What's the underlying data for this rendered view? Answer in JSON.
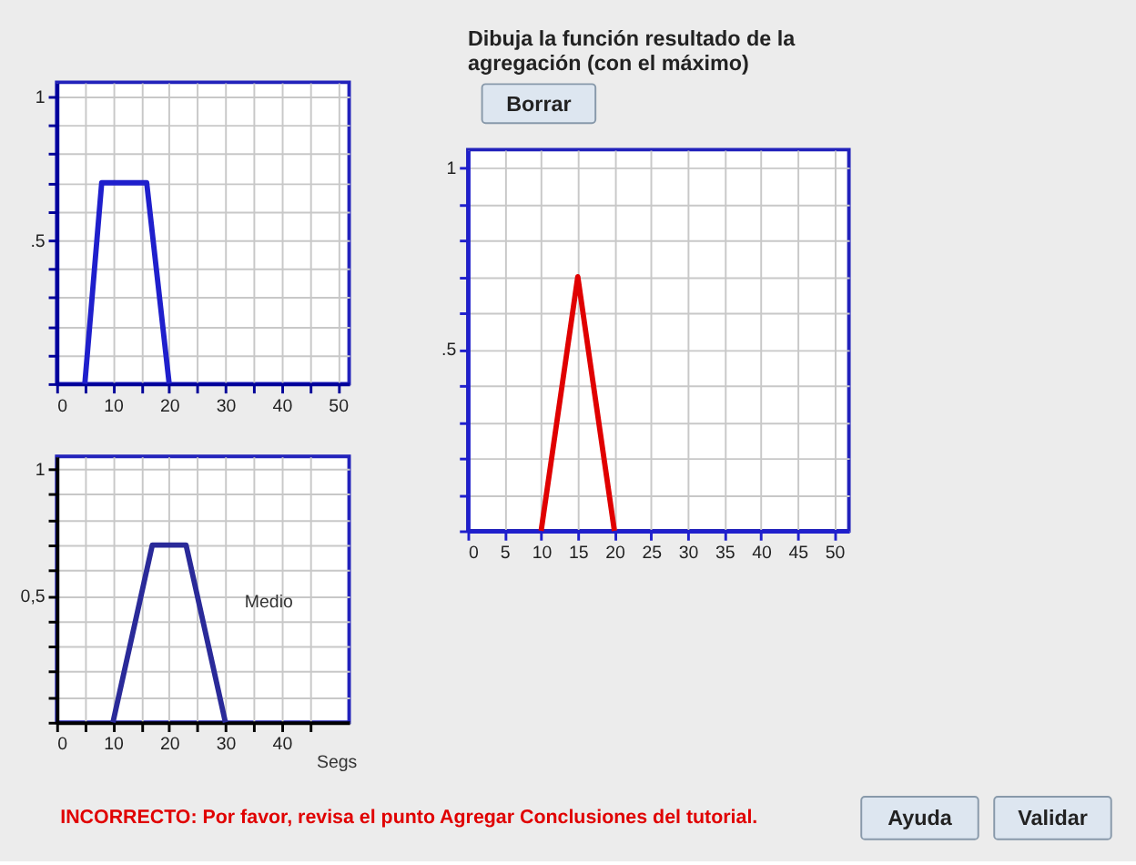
{
  "chart_data": [
    {
      "type": "line",
      "xlim": [
        0,
        52
      ],
      "ylim": [
        0,
        1.05
      ],
      "xticks": [
        0,
        {
          "value": 5,
          "label": null
        },
        10,
        {
          "value": 15,
          "label": null
        },
        20,
        {
          "value": 25,
          "label": null
        },
        30,
        {
          "value": 35,
          "label": null
        },
        40,
        {
          "value": 45,
          "label": null
        },
        50
      ],
      "yticks": [
        {
          "value": 0,
          "label": null
        },
        {
          "value": 0.1,
          "label": null
        },
        {
          "value": 0.2,
          "label": null
        },
        {
          "value": 0.3,
          "label": null
        },
        {
          "value": 0.4,
          "label": null
        },
        {
          "value": 0.5,
          "label": ".5"
        },
        {
          "value": 0.6,
          "label": null
        },
        {
          "value": 0.7,
          "label": null
        },
        {
          "value": 0.8,
          "label": null
        },
        {
          "value": 0.9,
          "label": null
        },
        1
      ],
      "grid": true,
      "legend": false,
      "marker": "none",
      "line_style": "solid",
      "series": [
        {
          "color": "#1f1fcc",
          "x": [
            5,
            8,
            16,
            20
          ],
          "values": [
            0,
            0.7,
            0.7,
            0
          ]
        }
      ]
    },
    {
      "type": "line",
      "xlim": [
        0,
        52
      ],
      "ylim": [
        0,
        1.05
      ],
      "xlabel": "Segs",
      "xticks": [
        0,
        {
          "value": 5,
          "label": null
        },
        10,
        {
          "value": 15,
          "label": null
        },
        20,
        {
          "value": 25,
          "label": null
        },
        30,
        {
          "value": 35,
          "label": null
        },
        40,
        {
          "value": 45,
          "label": null
        }
      ],
      "yticks": [
        {
          "value": 0,
          "label": null
        },
        {
          "value": 0.1,
          "label": null
        },
        {
          "value": 0.2,
          "label": null
        },
        {
          "value": 0.3,
          "label": null
        },
        {
          "value": 0.4,
          "label": null
        },
        {
          "value": 0.5,
          "label": "0,5"
        },
        {
          "value": 0.6,
          "label": null
        },
        {
          "value": 0.7,
          "label": null
        },
        {
          "value": 0.8,
          "label": null
        },
        {
          "value": 0.9,
          "label": null
        },
        1
      ],
      "grid": true,
      "legend": false,
      "marker": "none",
      "line_style": "solid",
      "series": [
        {
          "name": "Medio",
          "color": "#2a2a99",
          "x": [
            10,
            17,
            23,
            30
          ],
          "values": [
            0,
            0.7,
            0.7,
            0
          ]
        }
      ]
    },
    {
      "type": "line",
      "title": "Dibuja la función resultado de la agregación (con el máximo)",
      "xlim": [
        0,
        52
      ],
      "ylim": [
        0,
        1.05
      ],
      "xticks": [
        0,
        5,
        10,
        15,
        20,
        25,
        30,
        35,
        40,
        45,
        50
      ],
      "yticks": [
        {
          "value": 0,
          "label": null
        },
        {
          "value": 0.1,
          "label": null
        },
        {
          "value": 0.2,
          "label": null
        },
        {
          "value": 0.3,
          "label": null
        },
        {
          "value": 0.4,
          "label": null
        },
        {
          "value": 0.5,
          "label": ".5"
        },
        {
          "value": 0.6,
          "label": null
        },
        {
          "value": 0.7,
          "label": null
        },
        {
          "value": 0.8,
          "label": null
        },
        {
          "value": 0.9,
          "label": null
        },
        1
      ],
      "grid": true,
      "legend": false,
      "marker": "none",
      "line_style": "solid",
      "annotations": [
        "Borrar",
        "INCORRECTO: Por favor, revisa el punto Agregar Conclusiones del tutorial.",
        "Ayuda",
        "Validar"
      ],
      "series": [
        {
          "color": "#e00000",
          "x": [
            10,
            15,
            20
          ],
          "values": [
            0,
            0.7,
            0
          ]
        }
      ]
    }
  ]
}
